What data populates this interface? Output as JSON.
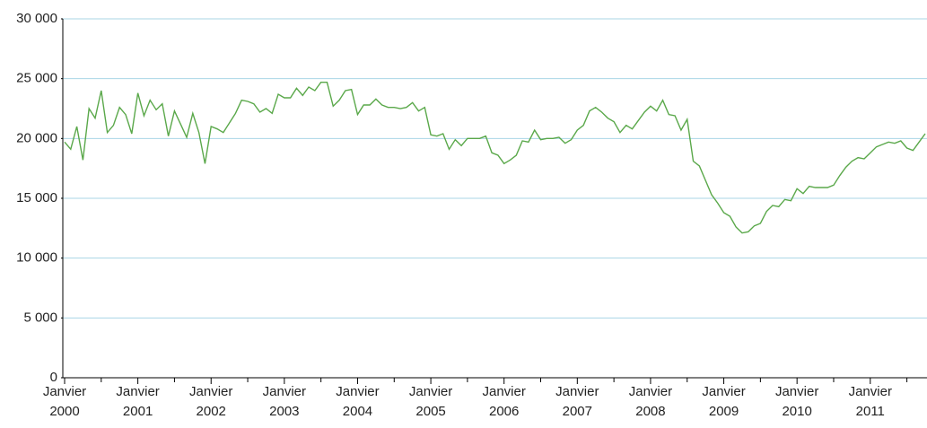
{
  "chart_data": {
    "type": "line",
    "categories": [
      "Janvier 2000",
      null,
      null,
      null,
      null,
      null,
      null,
      null,
      null,
      null,
      null,
      null,
      "Janvier 2001",
      null,
      null,
      null,
      null,
      null,
      null,
      null,
      null,
      null,
      null,
      null,
      "Janvier 2002",
      null,
      null,
      null,
      null,
      null,
      null,
      null,
      null,
      null,
      null,
      null,
      "Janvier 2003",
      null,
      null,
      null,
      null,
      null,
      null,
      null,
      null,
      null,
      null,
      null,
      "Janvier 2004",
      null,
      null,
      null,
      null,
      null,
      null,
      null,
      null,
      null,
      null,
      null,
      "Janvier 2005",
      null,
      null,
      null,
      null,
      null,
      null,
      null,
      null,
      null,
      null,
      null,
      "Janvier 2006",
      null,
      null,
      null,
      null,
      null,
      null,
      null,
      null,
      null,
      null,
      null,
      "Janvier 2007",
      null,
      null,
      null,
      null,
      null,
      null,
      null,
      null,
      null,
      null,
      null,
      "Janvier 2008",
      null,
      null,
      null,
      null,
      null,
      null,
      null,
      null,
      null,
      null,
      null,
      "Janvier 2009",
      null,
      null,
      null,
      null,
      null,
      null,
      null,
      null,
      null,
      null,
      null,
      "Janvier 2010",
      null,
      null,
      null,
      null,
      null,
      null,
      null,
      null,
      null,
      null,
      null,
      "Janvier 2011",
      null,
      null,
      null,
      null,
      null,
      null,
      null,
      null,
      null
    ],
    "series": [
      {
        "color": "#5aa84a",
        "values": [
          19700,
          19100,
          21000,
          18200,
          22500,
          21700,
          24000,
          20500,
          21100,
          22600,
          22000,
          20400,
          23800,
          21900,
          23200,
          22400,
          22900,
          20200,
          22300,
          21200,
          20100,
          22100,
          20500,
          17900,
          21000,
          20800,
          20500,
          21300,
          22100,
          23200,
          23100,
          22900,
          22200,
          22500,
          22100,
          23700,
          23400,
          23400,
          24200,
          23600,
          24300,
          24000,
          24700,
          24700,
          22700,
          23200,
          24000,
          24100,
          22000,
          22800,
          22800,
          23300,
          22800,
          22600,
          22600,
          22500,
          22600,
          23000,
          22300,
          22600,
          20300,
          20200,
          20400,
          19100,
          19900,
          19400,
          20000,
          20000,
          20000,
          20200,
          18800,
          18600,
          17900,
          18200,
          18600,
          19800,
          19700,
          20700,
          19900,
          20000,
          20000,
          20100,
          19600,
          19900,
          20700,
          21100,
          22300,
          22600,
          22200,
          21700,
          21400,
          20500,
          21100,
          20800,
          21500,
          22200,
          22700,
          22300,
          23200,
          22000,
          21900,
          20700,
          21600,
          18100,
          17700,
          16500,
          15300,
          14600,
          13800,
          13500,
          12600,
          12100,
          12200,
          12700,
          12900,
          13900,
          14400,
          14300,
          14900,
          14800,
          15800,
          15400,
          16000,
          15900,
          15900,
          15900,
          16100,
          16900,
          17600,
          18100,
          18400,
          18300,
          18800,
          19300,
          19500,
          19700,
          19600,
          19800,
          19200,
          19000,
          19700,
          20400
        ]
      }
    ],
    "ylim": [
      0,
      30000
    ],
    "yticks": [
      {
        "value": 0,
        "label": "0"
      },
      {
        "value": 5000,
        "label": "5 000"
      },
      {
        "value": 10000,
        "label": "10 000"
      },
      {
        "value": 15000,
        "label": "15 000"
      },
      {
        "value": 20000,
        "label": "20 000"
      },
      {
        "value": 25000,
        "label": "25 000"
      },
      {
        "value": 30000,
        "label": "30 000"
      }
    ],
    "grid": true
  }
}
